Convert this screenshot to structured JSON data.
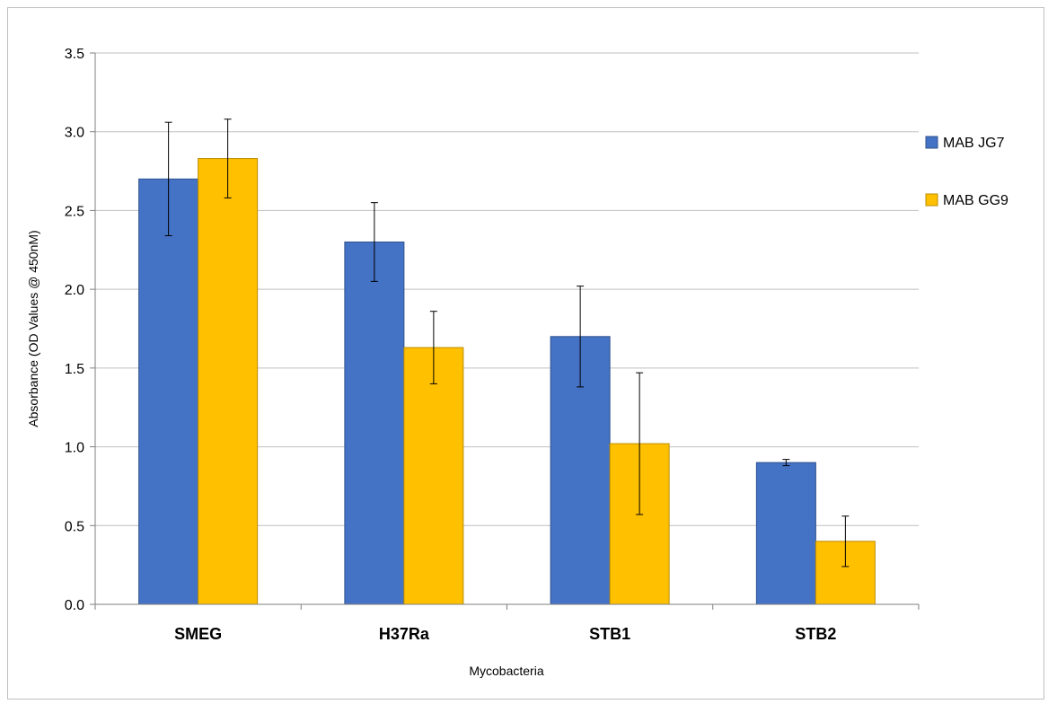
{
  "chart_data": {
    "type": "bar",
    "title": "",
    "xlabel": "Mycobacteria",
    "ylabel": "Absorbance (OD Values @ 450nM)",
    "ylim": [
      0,
      3.5
    ],
    "yticks": [
      "0.0",
      "0.5",
      "1.0",
      "1.5",
      "2.0",
      "2.5",
      "3.0",
      "3.5"
    ],
    "grid": true,
    "legend_position": "right",
    "categories": [
      "SMEG",
      "H37Ra",
      "STB1",
      "STB2"
    ],
    "series": [
      {
        "name": "MAB JG7",
        "color": "#4472c4",
        "values": [
          2.7,
          2.3,
          1.7,
          0.9
        ],
        "errors": [
          0.36,
          0.25,
          0.32,
          0.02
        ]
      },
      {
        "name": "MAB GG9",
        "color": "#ffc000",
        "values": [
          2.83,
          1.63,
          1.02,
          0.4
        ],
        "errors": [
          0.25,
          0.23,
          0.45,
          0.16
        ]
      }
    ]
  }
}
